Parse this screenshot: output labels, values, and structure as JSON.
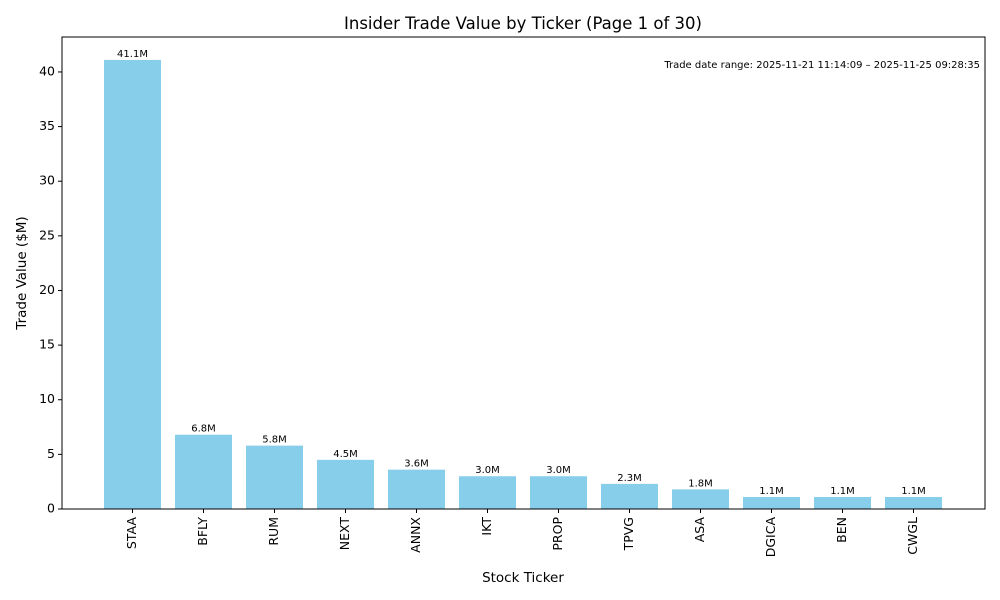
{
  "chart_data": {
    "type": "bar",
    "title": "Insider Trade Value by Ticker (Page 1 of 30)",
    "xlabel": "Stock Ticker",
    "ylabel": "Trade Value ($M)",
    "categories": [
      "STAA",
      "BFLY",
      "RUM",
      "NEXT",
      "ANNX",
      "IKT",
      "PROP",
      "TPVG",
      "ASA",
      "DGICA",
      "BEN",
      "CWGL"
    ],
    "values": [
      41.1,
      6.8,
      5.8,
      4.5,
      3.6,
      3.0,
      3.0,
      2.3,
      1.8,
      1.1,
      1.1,
      1.1
    ],
    "data_labels": [
      "41.1M",
      "6.8M",
      "5.8M",
      "4.5M",
      "3.6M",
      "3.0M",
      "3.0M",
      "2.3M",
      "1.8M",
      "1.1M",
      "1.1M",
      "1.1M"
    ],
    "ylim": [
      0,
      43.2
    ],
    "yticks": [
      0,
      5,
      10,
      15,
      20,
      25,
      30,
      35,
      40
    ],
    "annotation": "Trade date range: 2025-11-21 11:14:09 – 2025-11-25 09:28:35",
    "annotation_position": "top-right",
    "grid": false,
    "legend": false,
    "bar_color": "#87ceeb"
  }
}
